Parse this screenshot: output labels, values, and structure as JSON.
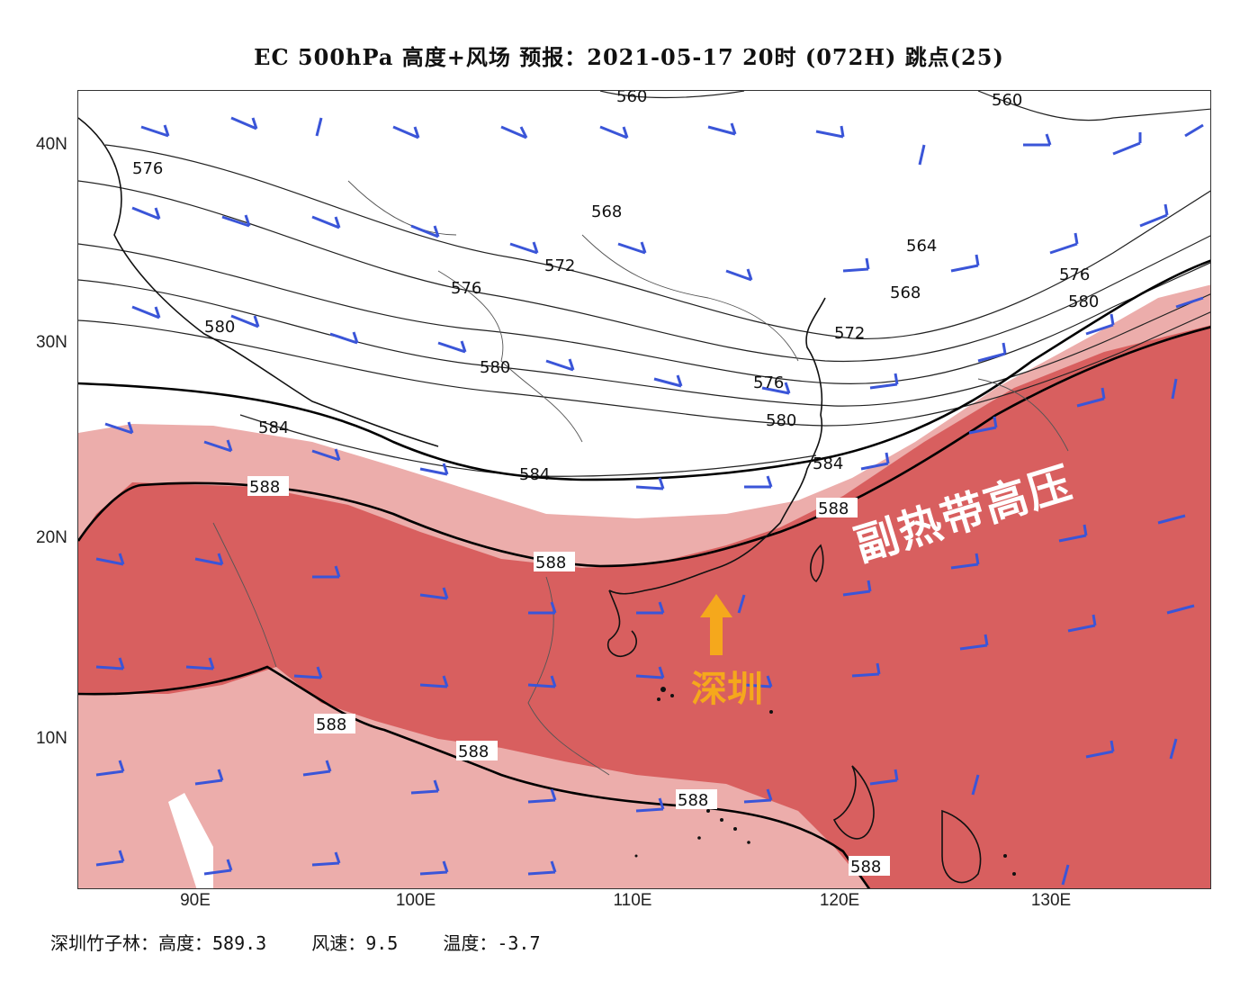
{
  "title": "EC 500hPa 高度+风场   预报：2021-05-17 20时 (072H) 跳点(25)",
  "axes": {
    "lat_labels": [
      "40N",
      "30N",
      "20N",
      "10N"
    ],
    "lon_labels": [
      "90E",
      "100E",
      "110E",
      "120E",
      "130E"
    ]
  },
  "contour_labels": [
    "560",
    "560",
    "576",
    "568",
    "564",
    "572",
    "576",
    "568",
    "576",
    "580",
    "572",
    "580",
    "580",
    "576",
    "580",
    "584",
    "584",
    "584",
    "588",
    "588",
    "588",
    "588",
    "588",
    "588",
    "588"
  ],
  "annotations": {
    "subtropical_high": "副热带高压",
    "city": "深圳"
  },
  "footer": {
    "station": "深圳竹子林：高度：589.3",
    "wind": "风速：9.5",
    "temp": "温度：-3.7"
  },
  "colors": {
    "high_588": "#d85f5f",
    "band_584_588": "#ecadab",
    "wind_barb": "#3a55d8",
    "arrow": "#f5a81c"
  }
}
